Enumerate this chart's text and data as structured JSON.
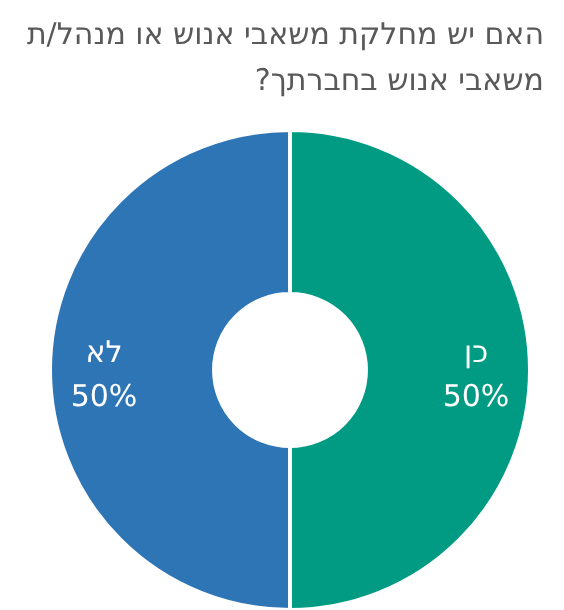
{
  "chart_data": {
    "type": "donut",
    "title": "האם יש מחלקת משאבי אנוש או מנהל/ת משאבי אנוש בחברתך?",
    "categories": [
      "כן",
      "לא"
    ],
    "values": [
      50,
      50
    ],
    "colors": [
      "#009b82",
      "#2e75b6"
    ],
    "value_labels": [
      "50%",
      "50%"
    ]
  }
}
